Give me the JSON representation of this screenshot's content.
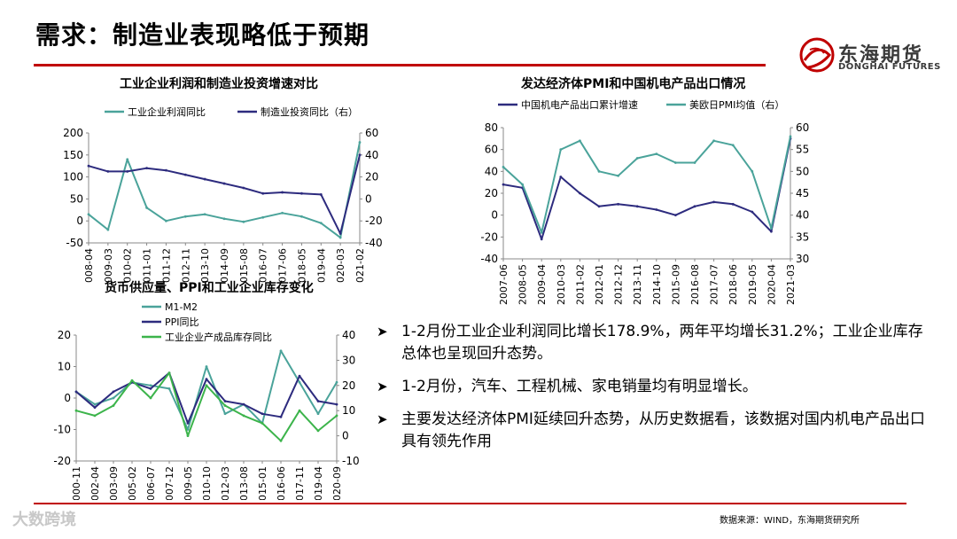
{
  "page": {
    "title": "需求：制造业表现略低于预期",
    "logo_cn": "东海期货",
    "logo_en": "DONGHAI FUTURES",
    "source": "数据来源：WIND，东海期货研究所",
    "watermark": "大数跨境"
  },
  "colors": {
    "accent": "#c00000",
    "teal": "#4aa39a",
    "navy": "#2d2b7e",
    "green": "#3cb44b"
  },
  "bullets": [
    "1-2月份工业企业利润同比增长178.9%，两年平均增长31.2%；工业企业库存总体也呈现回升态势。",
    "1-2月份，汽车、工程机械、家电销量均有明显增长。",
    "主要发达经济体PMI延续回升态势，从历史数据看，该数据对国内机电产品出口具有领先作用"
  ],
  "chart_data": [
    {
      "type": "line",
      "title": "工业企业利润和制造业投资增速对比",
      "x": [
        "2008-04",
        "2009-03",
        "2010-02",
        "2011-01",
        "2011-12",
        "2012-11",
        "2013-10",
        "2014-09",
        "2015-08",
        "2016-07",
        "2017-06",
        "2018-05",
        "2019-04",
        "2020-03",
        "2021-02"
      ],
      "xticks": [
        "2008-04",
        "2009-03",
        "2010-02",
        "2011-01",
        "2011-12",
        "2012-11",
        "2013-10",
        "2014-09",
        "2015-08",
        "2016-07",
        "2017-06",
        "2018-05",
        "2019-04",
        "2020-03",
        "2021-02"
      ],
      "ylim_left": [
        -50,
        200
      ],
      "yticks_left": [
        -50,
        0,
        50,
        100,
        150,
        200
      ],
      "ylim_right": [
        -40,
        60
      ],
      "yticks_right": [
        -40,
        -20,
        0,
        20,
        40,
        60
      ],
      "legend": "top",
      "series": [
        {
          "name": "工业企业利润同比",
          "axis": "left",
          "color": "#4aa39a",
          "values": [
            15,
            -20,
            140,
            30,
            0,
            10,
            15,
            5,
            -2,
            8,
            18,
            10,
            -5,
            -38,
            178.9
          ]
        },
        {
          "name": "制造业投资同比（右）",
          "axis": "right",
          "color": "#2d2b7e",
          "values": [
            30,
            25,
            25,
            28,
            26,
            22,
            18,
            14,
            10,
            5,
            6,
            5,
            4,
            -31.5,
            40
          ]
        }
      ]
    },
    {
      "type": "line",
      "title": "发达经济体PMI和中国机电产品出口情况",
      "x": [
        "2007-06",
        "2008-05",
        "2009-04",
        "2010-03",
        "2011-02",
        "2012-01",
        "2012-12",
        "2013-11",
        "2014-10",
        "2015-09",
        "2016-08",
        "2017-07",
        "2018-06",
        "2019-05",
        "2020-04",
        "2021-03"
      ],
      "xticks": [
        "2007-06",
        "2008-05",
        "2009-04",
        "2010-03",
        "2011-02",
        "2012-01",
        "2012-12",
        "2013-11",
        "2014-10",
        "2015-09",
        "2016-08",
        "2017-07",
        "2018-06",
        "2019-05",
        "2020-04",
        "2021-03"
      ],
      "ylim_left": [
        -40,
        80
      ],
      "yticks_left": [
        -40,
        -20,
        0,
        20,
        40,
        60,
        80
      ],
      "ylim_right": [
        30,
        60
      ],
      "yticks_right": [
        30,
        35,
        40,
        45,
        50,
        55,
        60
      ],
      "legend": "top",
      "series": [
        {
          "name": "中国机电产品出口累计增速",
          "axis": "left",
          "color": "#2d2b7e",
          "values": [
            28,
            25,
            -22,
            35,
            20,
            8,
            10,
            8,
            5,
            0,
            8,
            12,
            10,
            3,
            -15,
            70
          ]
        },
        {
          "name": "美欧日PMI均值（右）",
          "axis": "right",
          "color": "#4aa39a",
          "values": [
            51,
            47,
            36,
            55,
            57,
            50,
            49,
            53,
            54,
            52,
            52,
            57,
            56,
            50,
            37,
            58
          ]
        }
      ]
    },
    {
      "type": "line",
      "title": "货币供应量、PPI和工业企业库存变化",
      "x": [
        "2000-11",
        "2002-04",
        "2003-09",
        "2005-02",
        "2006-07",
        "2007-12",
        "2009-05",
        "2010-10",
        "2012-03",
        "2013-08",
        "2015-01",
        "2016-06",
        "2017-11",
        "2019-04",
        "2020-09"
      ],
      "xticks": [
        "2000-11",
        "2002-04",
        "2003-09",
        "2005-02",
        "2006-07",
        "2007-12",
        "2009-05",
        "2010-10",
        "2012-03",
        "2013-08",
        "2015-01",
        "2016-06",
        "2017-11",
        "2019-04",
        "2020-09"
      ],
      "ylim_left": [
        -20,
        20
      ],
      "yticks_left": [
        -20,
        -10,
        0,
        10,
        20
      ],
      "ylim_right": [
        -10,
        40
      ],
      "yticks_right": [
        -10,
        0,
        10,
        20,
        30,
        40
      ],
      "legend": "top-left",
      "series": [
        {
          "name": "M1-M2",
          "axis": "left",
          "color": "#4aa39a",
          "values": [
            2,
            -2,
            0,
            5,
            4,
            3,
            -10,
            10,
            -5,
            -2,
            -8,
            15,
            5,
            -5,
            5
          ]
        },
        {
          "name": "PPI同比",
          "axis": "left",
          "color": "#2d2b7e",
          "values": [
            2,
            -3,
            2,
            5,
            3,
            8,
            -8,
            6,
            -1,
            -2,
            -5,
            -6,
            7,
            -1,
            -2
          ]
        },
        {
          "name": "工业企业产成品库存同比",
          "axis": "right",
          "color": "#3cb44b",
          "values": [
            10,
            8,
            12,
            22,
            15,
            25,
            0,
            20,
            12,
            8,
            5,
            -2,
            10,
            2,
            8
          ]
        }
      ]
    }
  ]
}
